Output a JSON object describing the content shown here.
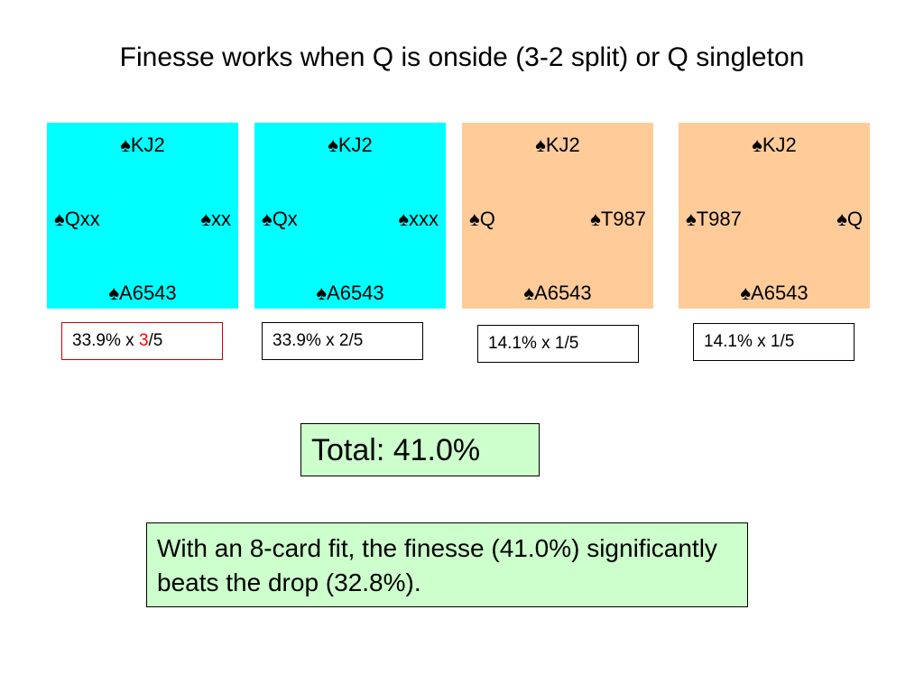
{
  "title": "Finesse works when Q is onside (3-2 split) or Q singleton",
  "colors": {
    "onside_card": "#00ffff",
    "singleton_card": "#ffcc99",
    "summary_box": "#ccffcc",
    "highlight": "#ff0000"
  },
  "cards": [
    {
      "north": "♠KJ2",
      "west": "♠Qxx",
      "east": "♠xx",
      "south": "♠A6543"
    },
    {
      "north": "♠KJ2",
      "west": "♠Qx",
      "east": "♠xxx",
      "south": "♠A6543"
    },
    {
      "north": "♠KJ2",
      "west": "♠Q",
      "east": "♠T987",
      "south": "♠A6543"
    },
    {
      "north": "♠KJ2",
      "west": "♠T987",
      "east": "♠Q",
      "south": "♠A6543"
    }
  ],
  "probabilities": [
    {
      "before": "33.9% x ",
      "highlight": "3",
      "after": "/5"
    },
    {
      "text": "33.9% x 2/5"
    },
    {
      "text": "14.1% x 1/5"
    },
    {
      "text": "14.1% x 1/5"
    }
  ],
  "total": "Total:  41.0%",
  "note": "With an 8-card fit, the finesse (41.0%) significantly beats the drop (32.8%)."
}
